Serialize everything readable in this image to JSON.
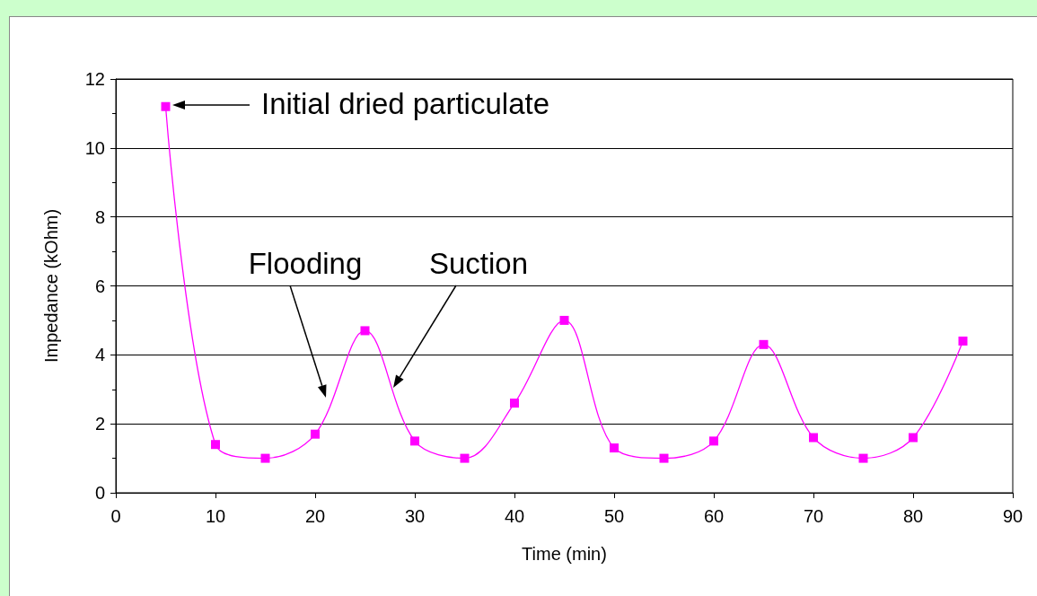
{
  "chart_data": {
    "type": "line",
    "xlabel": "Time (min)",
    "ylabel": "Impedance (kOhm)",
    "x": [
      5,
      10,
      15,
      20,
      25,
      30,
      35,
      40,
      45,
      50,
      55,
      60,
      65,
      70,
      75,
      80,
      85
    ],
    "series": [
      {
        "color": "#ff00ff",
        "values": [
          11.2,
          1.4,
          1.0,
          1.7,
          4.7,
          1.5,
          1.0,
          2.6,
          5.0,
          1.3,
          1.0,
          1.5,
          4.3,
          1.6,
          1.0,
          1.6,
          4.4
        ]
      }
    ],
    "xlim": [
      0,
      90
    ],
    "xticks": [
      0,
      10,
      20,
      30,
      40,
      50,
      60,
      70,
      80,
      90
    ],
    "ylim": [
      0,
      12
    ],
    "yticks": [
      0,
      2,
      4,
      6,
      8,
      10,
      12
    ],
    "grid": "y",
    "marker": "square",
    "line_style": "solid",
    "annotations": [
      "Initial dried particulate",
      "Flooding",
      "Suction"
    ]
  }
}
